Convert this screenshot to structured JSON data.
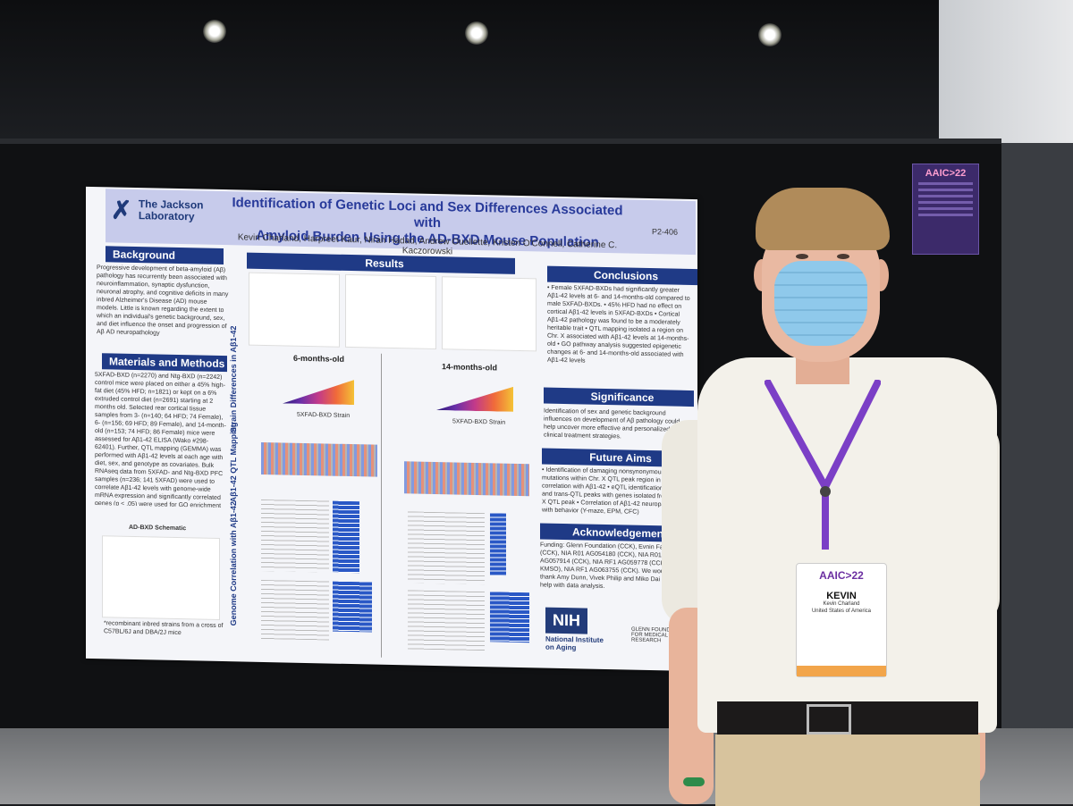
{
  "badge_sign": {
    "logo": "AAIC>22"
  },
  "poster": {
    "org_line1": "The Jackson",
    "org_line2": "Laboratory",
    "title_line1": "Identification of Genetic Loci and Sex Differences Associated with",
    "title_line2": "Amyloid Burden Using the AD-BXD Mouse Population",
    "authors": "Kevin Charland, Harpreet Kaur, Niran Hadad, Andrew Ouellette, Kristen O'Connell, Catherine C. Kaczorowski",
    "code": "P2-406",
    "background_header": "Background",
    "background_text": "Progressive development of beta-amyloid (Aβ) pathology has recurrently been associated with neuroinflammation, synaptic dysfunction, neuronal atrophy, and cognitive deficits in many inbred Alzheimer's Disease (AD) mouse models. Little is known regarding the extent to which an individual's genetic background, sex, and diet influence the onset and progression of Aβ AD neuropathology",
    "methods_header": "Materials and Methods",
    "methods_text": "5XFAD-BXD (n=2270) and Ntg-BXD (n=2242) control mice were placed on either a 45% high-fat diet (45% HFD; n=1821) or kept on a 6% extruded control diet (n=2691) starting at 2 months old. Selected rear cortical tissue samples from 3- (n=140; 64 HFD; 74 Female), 6- (n=156; 69 HFD; 89 Female), and 14-month-old (n=153; 74 HFD; 86 Female) mice were assessed for Aβ1-42 ELISA (Wako #298-62401). Further, QTL mapping (GEMMA) was performed with Aβ1-42 levels at each age with diet, sex, and genotype as covariates. Bulk RNAseq data from 5XFAD- and Ntg-BXD PFC samples (n=236; 141 5XFAD) were used to correlate Aβ1-42 levels with genome-wide mRNA expression and significantly correlated genes (p < .05) were used for GO enrichment (Enrichr).",
    "schematic_title": "AD-BXD Schematic",
    "schematic_note": "*recombinant inbred strains from a cross of C57BL/6J and DBA/2J mice",
    "results_header": "Results",
    "six_months": "6-months-old",
    "fourteen_months": "14-months-old",
    "strain_label": "5XFAD-BXD Strain",
    "row_label_1": "Strain Differences in Aβ1-42",
    "row_label_2": "Aβ1-42 QTL Mapping",
    "row_label_3": "Genome Correlation with Aβ1-42",
    "conclusions_header": "Conclusions",
    "conclusions_text": "• Female 5XFAD-BXDs had significantly greater Aβ1-42 levels at 6- and 14-months-old compared to male 5XFAD-BXDs. • 45% HFD had no effect on cortical Aβ1-42 levels in 5XFAD-BXDs • Cortical Aβ1-42 pathology was found to be a moderately heritable trait • QTL mapping isolated a region on Chr. X associated with Aβ1-42 levels at 14-months-old • GO pathway analysis suggested epigenetic changes at 6- and 14-months-old associated with Aβ1-42 levels",
    "significance_header": "Significance",
    "significance_text": "Identification of sex and genetic background influences on development of Aβ pathology could help uncover more effective and personalized clinical treatment strategies.",
    "future_header": "Future Aims",
    "future_text": "• Identification of damaging nonsynonymous mutations within Chr. X QTL peak region in correlation with Aβ1-42 • eQTL identification of cis- and trans-QTL peaks with genes isolated from Chr. X QTL peak • Correlation of Aβ1-42 neuropathology with behavior (Y-maze, EPM, CFC)",
    "ack_header": "Acknowledgement",
    "ack_text": "Funding: Glenn Foundation (CCK), Evnin Family (CCK), NIA R01 AG054180 (CCK), NIA R01 AG057914 (CCK), NIA RF1 AG059778 (CCK & KMSO), NIA RF1 AG063755 (CCK). We would like to thank Amy Dunn, Vivek Philip and Miko Dai for their help with data analysis.",
    "nih": "NIH",
    "nih_caption_1": "National Institute",
    "nih_caption_2": "on Aging",
    "glenn": "GLENN FOUNDATION FOR MEDICAL RESEARCH"
  },
  "name_badge": {
    "logo": "AAIC>22",
    "first_name": "KEVIN",
    "full_name": "Kevin Charland",
    "country": "United States of America"
  }
}
